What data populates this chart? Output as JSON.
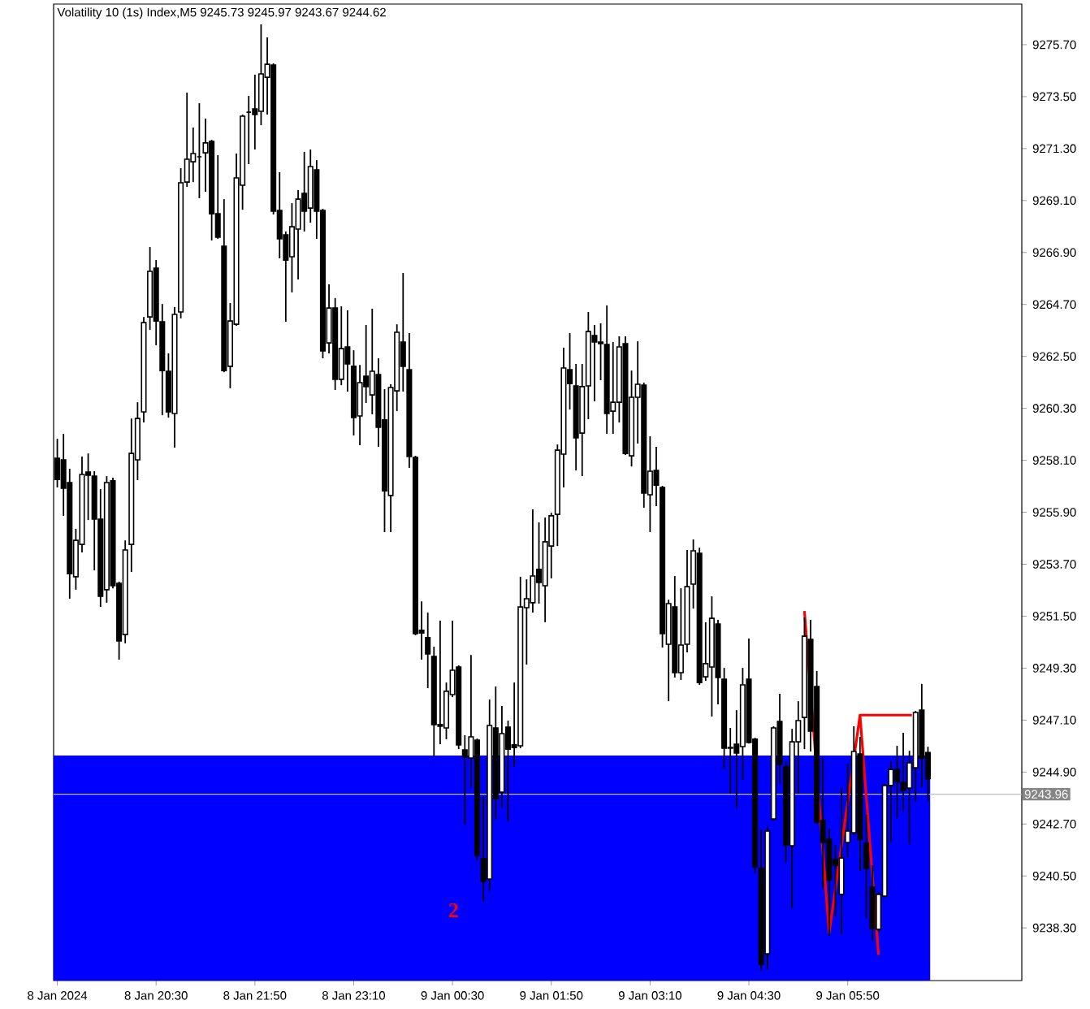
{
  "chart_data": {
    "type": "candlestick",
    "title": "Volatility 10 (1s) Index,M5  9245.73 9245.97 9243.67 9244.62",
    "color": "#000000",
    "x": [
      "2024-01-08T19:10",
      "2024-01-08T19:15",
      "2024-01-08T19:20",
      "2024-01-08T19:25",
      "2024-01-08T19:30",
      "2024-01-08T19:35",
      "2024-01-08T19:40",
      "2024-01-08T19:45",
      "2024-01-08T19:50",
      "2024-01-08T19:55",
      "2024-01-08T20:00",
      "2024-01-08T20:05",
      "2024-01-08T20:10",
      "2024-01-08T20:15",
      "2024-01-08T20:20",
      "2024-01-08T20:25",
      "2024-01-08T20:30",
      "2024-01-08T20:35",
      "2024-01-08T20:40",
      "2024-01-08T20:45",
      "2024-01-08T20:50",
      "2024-01-08T20:55",
      "2024-01-08T21:00",
      "2024-01-08T21:05",
      "2024-01-08T21:10",
      "2024-01-08T21:15",
      "2024-01-08T21:20",
      "2024-01-08T21:25",
      "2024-01-08T21:30",
      "2024-01-08T21:35",
      "2024-01-08T21:40",
      "2024-01-08T21:45",
      "2024-01-08T21:50",
      "2024-01-08T21:55",
      "2024-01-08T22:00",
      "2024-01-08T22:05",
      "2024-01-08T22:10",
      "2024-01-08T22:15",
      "2024-01-08T22:20",
      "2024-01-08T22:25",
      "2024-01-08T22:30",
      "2024-01-08T22:35",
      "2024-01-08T22:40",
      "2024-01-08T22:45",
      "2024-01-08T22:50",
      "2024-01-08T22:55",
      "2024-01-08T23:00",
      "2024-01-08T23:05",
      "2024-01-08T23:10",
      "2024-01-08T23:15",
      "2024-01-08T23:20",
      "2024-01-08T23:25",
      "2024-01-08T23:30",
      "2024-01-08T23:35",
      "2024-01-08T23:40",
      "2024-01-08T23:45",
      "2024-01-08T23:50",
      "2024-01-08T23:55",
      "2024-01-09T00:00",
      "2024-01-09T00:05",
      "2024-01-09T00:10",
      "2024-01-09T00:15",
      "2024-01-09T00:20",
      "2024-01-09T00:25",
      "2024-01-09T00:30",
      "2024-01-09T00:35",
      "2024-01-09T00:40",
      "2024-01-09T00:45",
      "2024-01-09T00:50",
      "2024-01-09T00:55",
      "2024-01-09T01:00",
      "2024-01-09T01:05",
      "2024-01-09T01:10",
      "2024-01-09T01:15",
      "2024-01-09T01:20",
      "2024-01-09T01:25",
      "2024-01-09T01:30",
      "2024-01-09T01:35",
      "2024-01-09T01:40",
      "2024-01-09T01:45",
      "2024-01-09T01:50",
      "2024-01-09T01:55",
      "2024-01-09T02:00",
      "2024-01-09T02:05",
      "2024-01-09T02:10",
      "2024-01-09T02:15",
      "2024-01-09T02:20",
      "2024-01-09T02:25",
      "2024-01-09T02:30",
      "2024-01-09T02:35",
      "2024-01-09T02:40",
      "2024-01-09T02:45",
      "2024-01-09T02:50",
      "2024-01-09T02:55",
      "2024-01-09T03:00",
      "2024-01-09T03:05",
      "2024-01-09T03:10",
      "2024-01-09T03:15",
      "2024-01-09T03:20",
      "2024-01-09T03:25",
      "2024-01-09T03:30",
      "2024-01-09T03:35",
      "2024-01-09T03:40",
      "2024-01-09T03:45",
      "2024-01-09T03:50",
      "2024-01-09T03:55",
      "2024-01-09T04:00",
      "2024-01-09T04:05",
      "2024-01-09T04:10",
      "2024-01-09T04:15",
      "2024-01-09T04:20",
      "2024-01-09T04:25",
      "2024-01-09T04:30",
      "2024-01-09T04:35",
      "2024-01-09T04:40",
      "2024-01-09T04:45",
      "2024-01-09T04:50",
      "2024-01-09T04:55",
      "2024-01-09T05:00",
      "2024-01-09T05:05",
      "2024-01-09T05:10",
      "2024-01-09T05:15",
      "2024-01-09T05:20",
      "2024-01-09T05:25",
      "2024-01-09T05:30",
      "2024-01-09T05:35",
      "2024-01-09T05:40",
      "2024-01-09T05:45",
      "2024-01-09T05:50",
      "2024-01-09T05:55",
      "2024-01-09T06:00",
      "2024-01-09T06:05",
      "2024-01-09T06:10",
      "2024-01-09T06:15",
      "2024-01-09T06:20",
      "2024-01-09T06:25",
      "2024-01-09T06:30",
      "2024-01-09T06:35",
      "2024-01-09T06:40",
      "2024-01-09T06:45",
      "2024-01-09T06:50",
      "2024-01-09T06:55"
    ],
    "ohlc": [
      [
        9258.19,
        9259.01,
        9256.95,
        9257.29
      ],
      [
        9258.12,
        9259.22,
        9255.75,
        9256.92
      ],
      [
        9257.16,
        9257.74,
        9252.24,
        9253.3
      ],
      [
        9253.17,
        9255.2,
        9252.62,
        9254.71
      ],
      [
        9254.54,
        9258.26,
        9254.2,
        9257.5
      ],
      [
        9257.6,
        9258.39,
        9255.57,
        9257.47
      ],
      [
        9257.43,
        9257.64,
        9253.44,
        9255.61
      ],
      [
        9255.61,
        9256.88,
        9251.89,
        9252.34
      ],
      [
        9252.62,
        9257.43,
        9252.07,
        9257.16
      ],
      [
        9257.23,
        9257.36,
        9252.68,
        9252.79
      ],
      [
        9252.89,
        9252.96,
        9249.66,
        9250.45
      ],
      [
        9250.72,
        9254.71,
        9250.35,
        9254.3
      ],
      [
        9254.54,
        9259.87,
        9253.37,
        9258.39
      ],
      [
        9258.12,
        9260.56,
        9257.26,
        9259.87
      ],
      [
        9260.15,
        9264.17,
        9259.7,
        9263.93
      ],
      [
        9264.17,
        9267.13,
        9263.62,
        9266.1
      ],
      [
        9266.24,
        9266.58,
        9262.97,
        9264.0
      ],
      [
        9263.97,
        9264.72,
        9260.01,
        9261.9
      ],
      [
        9261.87,
        9262.63,
        9259.91,
        9260.15
      ],
      [
        9260.08,
        9264.59,
        9258.64,
        9264.28
      ],
      [
        9264.38,
        9270.47,
        9264.11,
        9269.85
      ],
      [
        9269.88,
        9273.67,
        9269.68,
        9270.85
      ],
      [
        9270.74,
        9272.19,
        9269.88,
        9271.09
      ],
      [
        9270.95,
        9273.22,
        9269.2,
        9270.95
      ],
      [
        9271.12,
        9272.57,
        9269.47,
        9271.54
      ],
      [
        9271.6,
        9271.67,
        9267.41,
        9268.54
      ],
      [
        9268.54,
        9271.02,
        9267.48,
        9267.55
      ],
      [
        9267.17,
        9269.16,
        9261.83,
        9261.9
      ],
      [
        9262.08,
        9264.76,
        9261.15,
        9264.0
      ],
      [
        9263.86,
        9271.09,
        9263.8,
        9270.06
      ],
      [
        9269.75,
        9272.74,
        9268.71,
        9272.67
      ],
      [
        9272.84,
        9273.53,
        9270.64,
        9272.84
      ],
      [
        9272.98,
        9274.43,
        9271.26,
        9272.74
      ],
      [
        9272.88,
        9276.56,
        9272.29,
        9274.46
      ],
      [
        9274.32,
        9276.01,
        9272.74,
        9274.87
      ],
      [
        9274.84,
        9274.91,
        9268.51,
        9268.65
      ],
      [
        9268.68,
        9270.3,
        9266.65,
        9267.48
      ],
      [
        9267.65,
        9267.79,
        9263.97,
        9266.58
      ],
      [
        9266.72,
        9268.99,
        9265.21,
        9267.99
      ],
      [
        9267.89,
        9269.54,
        9265.76,
        9269.16
      ],
      [
        9269.4,
        9271.16,
        9267.79,
        9268.65
      ],
      [
        9268.78,
        9271.26,
        9268.16,
        9270.54
      ],
      [
        9270.4,
        9270.81,
        9267.48,
        9268.65
      ],
      [
        9268.68,
        9268.75,
        9262.42,
        9262.73
      ],
      [
        9263.07,
        9265.55,
        9262.63,
        9264.55
      ],
      [
        9264.55,
        9264.97,
        9261.08,
        9261.53
      ],
      [
        9261.53,
        9264.62,
        9261.28,
        9262.83
      ],
      [
        9262.9,
        9264.45,
        9261.01,
        9262.18
      ],
      [
        9262.08,
        9262.76,
        9259.15,
        9259.91
      ],
      [
        9259.98,
        9262.14,
        9258.74,
        9261.39
      ],
      [
        9261.66,
        9263.83,
        9260.53,
        9261.22
      ],
      [
        9260.87,
        9264.52,
        9260.05,
        9261.87
      ],
      [
        9261.73,
        9262.42,
        9258.67,
        9259.5
      ],
      [
        9259.81,
        9261.11,
        9255.06,
        9256.81
      ],
      [
        9256.61,
        9261.32,
        9255.06,
        9261.18
      ],
      [
        9261.04,
        9263.86,
        9260.18,
        9263.52
      ],
      [
        9263.11,
        9266.03,
        9261.01,
        9262.08
      ],
      [
        9261.94,
        9263.49,
        9257.78,
        9258.26
      ],
      [
        9258.22,
        9258.29,
        9250.69,
        9250.76
      ],
      [
        9250.9,
        9252.13,
        9249.66,
        9250.79
      ],
      [
        9250.59,
        9251.65,
        9248.45,
        9249.9
      ],
      [
        9249.79,
        9250.21,
        9245.53,
        9246.91
      ],
      [
        9246.91,
        9251.31,
        9246.08,
        9246.84
      ],
      [
        9246.77,
        9248.69,
        9246.29,
        9248.32
      ],
      [
        9248.18,
        9251.31,
        9248.07,
        9249.21
      ],
      [
        9249.35,
        9249.42,
        9245.87,
        9246.05
      ],
      [
        9245.84,
        9246.46,
        9242.67,
        9245.53
      ],
      [
        9245.49,
        9249.86,
        9244.22,
        9246.39
      ],
      [
        9246.25,
        9246.32,
        9241.16,
        9241.37
      ],
      [
        9241.23,
        9243.88,
        9239.41,
        9240.27
      ],
      [
        9240.37,
        9247.97,
        9239.85,
        9246.87
      ],
      [
        9246.77,
        9248.52,
        9242.88,
        9243.77
      ],
      [
        9244.05,
        9247.7,
        9243.4,
        9246.53
      ],
      [
        9246.8,
        9247.08,
        9242.81,
        9245.87
      ],
      [
        9246.05,
        9248.69,
        9245.12,
        9245.94
      ],
      [
        9246.01,
        9253.17,
        9245.91,
        9251.89
      ],
      [
        9251.86,
        9253.06,
        9249.45,
        9252.24
      ],
      [
        9252.07,
        9256.02,
        9251.65,
        9253.2
      ],
      [
        9253.48,
        9255.47,
        9252.03,
        9252.93
      ],
      [
        9252.79,
        9255.68,
        9251.24,
        9254.65
      ],
      [
        9254.47,
        9255.88,
        9253.1,
        9255.75
      ],
      [
        9255.81,
        9258.77,
        9254.47,
        9258.53
      ],
      [
        9258.36,
        9262.87,
        9256.95,
        9262.01
      ],
      [
        9261.94,
        9263.49,
        9260.25,
        9261.35
      ],
      [
        9261.25,
        9262.18,
        9257.67,
        9259.05
      ],
      [
        9259.25,
        9262.18,
        9257.43,
        9261.22
      ],
      [
        9261.25,
        9264.38,
        9259.84,
        9263.55
      ],
      [
        9263.38,
        9263.83,
        9260.6,
        9263.11
      ],
      [
        9263.11,
        9263.9,
        9261.49,
        9263.04
      ],
      [
        9263.0,
        9264.66,
        9259.22,
        9260.08
      ],
      [
        9260.18,
        9263.11,
        9259.22,
        9260.56
      ],
      [
        9260.56,
        9263.35,
        9259.7,
        9262.9
      ],
      [
        9263.04,
        9263.35,
        9258.33,
        9258.39
      ],
      [
        9258.29,
        9261.9,
        9257.84,
        9260.77
      ],
      [
        9260.77,
        9263.14,
        9258.81,
        9261.32
      ],
      [
        9261.28,
        9261.39,
        9256.09,
        9256.71
      ],
      [
        9256.64,
        9259.12,
        9255.06,
        9257.64
      ],
      [
        9257.67,
        9258.67,
        9256.16,
        9257.05
      ],
      [
        9256.95,
        9257.02,
        9250.17,
        9250.76
      ],
      [
        9250.31,
        9252.2,
        9247.9,
        9252.03
      ],
      [
        9251.89,
        9253.2,
        9248.9,
        9249.11
      ],
      [
        9249.11,
        9252.68,
        9248.8,
        9250.28
      ],
      [
        9250.31,
        9254.3,
        9249.97,
        9252.75
      ],
      [
        9252.86,
        9254.75,
        9251.82,
        9254.27
      ],
      [
        9254.16,
        9254.4,
        9248.59,
        9248.69
      ],
      [
        9248.93,
        9251.24,
        9248.76,
        9249.49
      ],
      [
        9249.35,
        9252.34,
        9247.25,
        9251.41
      ],
      [
        9251.17,
        9251.34,
        9247.77,
        9248.9
      ],
      [
        9248.83,
        9249.31,
        9245.05,
        9245.91
      ],
      [
        9245.94,
        9246.77,
        9243.98,
        9245.91
      ],
      [
        9246.08,
        9247.52,
        9243.36,
        9245.7
      ],
      [
        9245.98,
        9249.31,
        9244.57,
        9248.59
      ],
      [
        9248.83,
        9250.55,
        9246.11,
        9246.15
      ],
      [
        9246.29,
        9246.35,
        9240.61,
        9240.89
      ],
      [
        9240.82,
        9242.47,
        9236.48,
        9236.76
      ],
      [
        9237.2,
        9242.61,
        9236.55,
        9242.4
      ],
      [
        9242.91,
        9246.84,
        9242.85,
        9246.77
      ],
      [
        9247.04,
        9248.21,
        9244.39,
        9245.22
      ],
      [
        9245.12,
        9245.36,
        9241.06,
        9241.81
      ],
      [
        9241.78,
        9246.73,
        9239.13,
        9246.18
      ],
      [
        9246.18,
        9247.9,
        9243.98,
        9247.08
      ],
      [
        9247.21,
        9251.45,
        9245.87,
        9250.65
      ],
      [
        9250.52,
        9251.34,
        9245.77,
        9246.63
      ],
      [
        9248.52,
        9249.18,
        9242.71,
        9242.78
      ],
      [
        9242.85,
        9245.49,
        9239.99,
        9241.92
      ],
      [
        9242.05,
        9242.5,
        9237.96,
        9240.33
      ],
      [
        9241.19,
        9241.81,
        9238.79,
        9240.95
      ],
      [
        9239.72,
        9244.22,
        9238.03,
        9241.26
      ],
      [
        9241.92,
        9245.25,
        9241.3,
        9242.4
      ],
      [
        9242.33,
        9246.84,
        9242.23,
        9245.77
      ],
      [
        9245.67,
        9246.39,
        9240.71,
        9242.05
      ],
      [
        9241.88,
        9243.09,
        9238.72,
        9240.82
      ],
      [
        9240.03,
        9240.95,
        9237.75,
        9238.27
      ],
      [
        9238.24,
        9239.82,
        9238.13,
        9239.72
      ],
      [
        9239.65,
        9244.39,
        9239.58,
        9244.33
      ],
      [
        9244.33,
        9245.36,
        9241.92,
        9245.01
      ],
      [
        9245.01,
        9246.01,
        9242.95,
        9244.5
      ],
      [
        9244.46,
        9246.56,
        9243.22,
        9244.12
      ],
      [
        9244.22,
        9245.8,
        9241.85,
        9245.29
      ],
      [
        9245.08,
        9247.49,
        9243.64,
        9247.42
      ],
      [
        9247.52,
        9248.63,
        9244.26,
        9245.49
      ],
      [
        9245.73,
        9245.97,
        9243.67,
        9244.62
      ]
    ],
    "series": [
      {
        "type": "line",
        "color": "#ff0000",
        "x": [
          "2024-01-09T05:15",
          "2024-01-09T05:35",
          "2024-01-09T06:00",
          "2024-01-09T06:15"
        ],
        "values": [
          9251.72,
          9238.09,
          9247.31,
          9237.16
        ]
      },
      {
        "type": "line",
        "color": "#ff0000",
        "x": [
          "2024-01-09T06:00",
          "2024-01-09T06:42"
        ],
        "values": [
          9247.31,
          9247.31
        ]
      }
    ],
    "xlim": [
      "2024-01-08T19:07",
      "2024-01-09T08:11"
    ],
    "xticks": [
      {
        "value": "2024-01-08T19:10",
        "label": "8 Jan 2024"
      },
      {
        "value": "2024-01-08T20:30",
        "label": "8 Jan 20:30"
      },
      {
        "value": "2024-01-08T21:50",
        "label": "8 Jan 21:50"
      },
      {
        "value": "2024-01-08T23:10",
        "label": "8 Jan 23:10"
      },
      {
        "value": "2024-01-09T00:30",
        "label": "9 Jan 00:30"
      },
      {
        "value": "2024-01-09T01:50",
        "label": "9 Jan 01:50"
      },
      {
        "value": "2024-01-09T03:10",
        "label": "9 Jan 03:10"
      },
      {
        "value": "2024-01-09T04:30",
        "label": "9 Jan 04:30"
      },
      {
        "value": "2024-01-09T05:50",
        "label": "9 Jan 05:50"
      }
    ],
    "ylim": [
      9236.07,
      9277.42
    ],
    "yticks": [
      {
        "value": 9275.7,
        "label": "9275.70"
      },
      {
        "value": 9273.5,
        "label": "9273.50"
      },
      {
        "value": 9271.3,
        "label": "9271.30"
      },
      {
        "value": 9269.1,
        "label": "9269.10"
      },
      {
        "value": 9266.9,
        "label": "9266.90"
      },
      {
        "value": 9264.7,
        "label": "9264.70"
      },
      {
        "value": 9262.5,
        "label": "9262.50"
      },
      {
        "value": 9260.3,
        "label": "9260.30"
      },
      {
        "value": 9258.1,
        "label": "9258.10"
      },
      {
        "value": 9255.9,
        "label": "9255.90"
      },
      {
        "value": 9253.7,
        "label": "9253.70"
      },
      {
        "value": 9251.5,
        "label": "9251.50"
      },
      {
        "value": 9249.3,
        "label": "9249.30"
      },
      {
        "value": 9247.1,
        "label": "9247.10"
      },
      {
        "value": 9244.9,
        "label": "9244.90"
      },
      {
        "value": 9242.7,
        "label": "9242.70"
      },
      {
        "value": 9240.5,
        "label": "9240.50"
      },
      {
        "value": 9238.3,
        "label": "9238.30"
      }
    ],
    "bands": [
      {
        "axis": "y",
        "from": 9236.07,
        "to": 9245.6,
        "color": "#0000ff"
      }
    ],
    "ref_lines": [
      {
        "axis": "y",
        "value": 9243.96,
        "label": "9243.96",
        "color": "#c0c0c0"
      }
    ],
    "annotations": [
      "2"
    ]
  }
}
